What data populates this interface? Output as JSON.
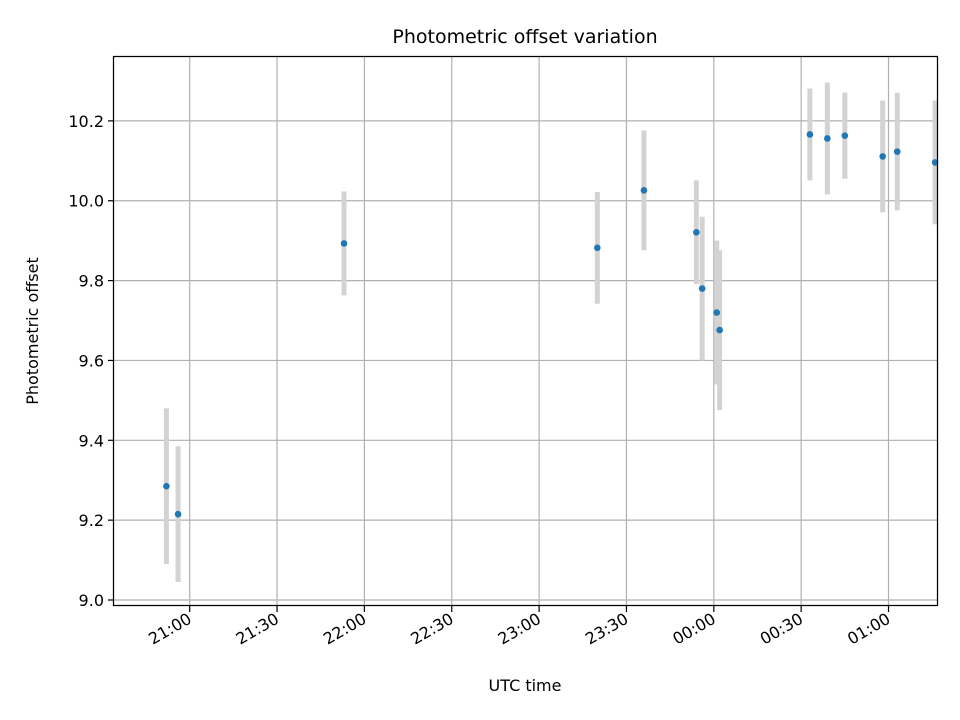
{
  "chart_data": {
    "type": "scatter",
    "title": "Photometric offset variation",
    "xlabel": "UTC time",
    "ylabel": "Photometric offset",
    "x_unit": "UTC clock time (HH:MM), spanning midnight",
    "xlim": [
      "20:34",
      "01:17"
    ],
    "ylim": [
      8.985,
      10.36
    ],
    "x_ticks": [
      "21:00",
      "21:30",
      "22:00",
      "22:30",
      "23:00",
      "23:30",
      "00:00",
      "00:30",
      "01:00"
    ],
    "y_ticks": [
      "9.0",
      "9.2",
      "9.4",
      "9.6",
      "9.8",
      "10.0",
      "10.2"
    ],
    "grid": true,
    "marker_color": "#1f77b4",
    "errorbar_color": "#d3d3d3",
    "points": [
      {
        "x": "20:52",
        "y": 9.285,
        "yerr": 0.195
      },
      {
        "x": "20:56",
        "y": 9.215,
        "yerr": 0.17
      },
      {
        "x": "21:53",
        "y": 9.893,
        "yerr": 0.13
      },
      {
        "x": "23:20",
        "y": 9.882,
        "yerr": 0.14
      },
      {
        "x": "23:36",
        "y": 10.026,
        "yerr": 0.15
      },
      {
        "x": "23:54",
        "y": 9.921,
        "yerr": 0.13
      },
      {
        "x": "23:56",
        "y": 9.78,
        "yerr": 0.18
      },
      {
        "x": "00:01",
        "y": 9.72,
        "yerr": 0.18
      },
      {
        "x": "00:02",
        "y": 9.676,
        "yerr": 0.2
      },
      {
        "x": "00:33",
        "y": 10.166,
        "yerr": 0.115
      },
      {
        "x": "00:39",
        "y": 10.156,
        "yerr": 0.14
      },
      {
        "x": "00:45",
        "y": 10.163,
        "yerr": 0.108
      },
      {
        "x": "00:58",
        "y": 10.111,
        "yerr": 0.14
      },
      {
        "x": "01:03",
        "y": 10.123,
        "yerr": 0.147
      },
      {
        "x": "01:16",
        "y": 10.096,
        "yerr": 0.155
      }
    ]
  }
}
